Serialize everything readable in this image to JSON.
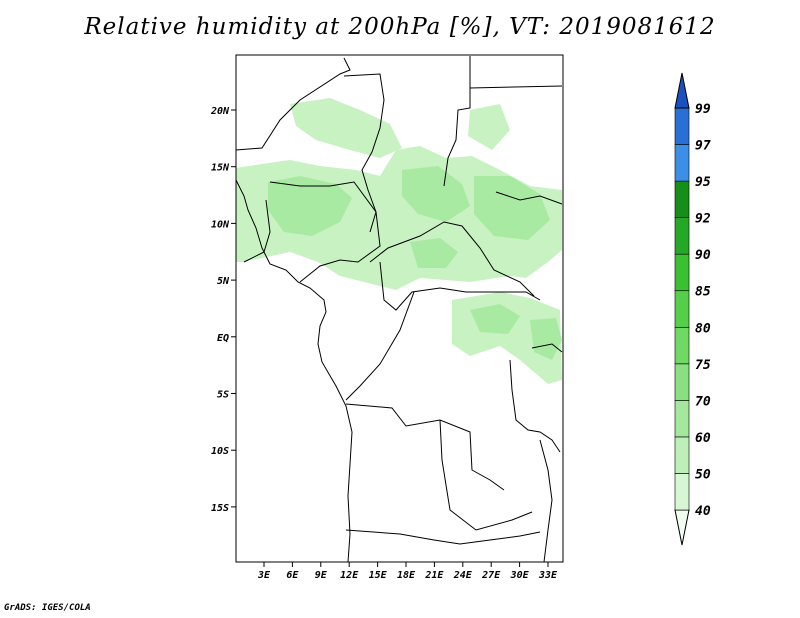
{
  "title": "Relative humidity at 200hPa [%], VT: 2019081612",
  "credit": "GrADS: IGES/COLA",
  "map": {
    "lon_range": [
      0,
      34
    ],
    "lat_range": [
      -20,
      25
    ],
    "lat_ticks": [
      "20N",
      "15N",
      "10N",
      "5N",
      "EQ",
      "5S",
      "10S",
      "15S"
    ],
    "lon_ticks": [
      "3E",
      "6E",
      "9E",
      "12E",
      "15E",
      "18E",
      "21E",
      "24E",
      "27E",
      "30E",
      "33E"
    ]
  },
  "colorbar": {
    "levels": [
      "40",
      "50",
      "60",
      "70",
      "75",
      "80",
      "85",
      "90",
      "92",
      "95",
      "97",
      "99"
    ],
    "colors": [
      "#f0fcf0",
      "#d7f6d4",
      "#bdefb8",
      "#a3e89c",
      "#8ae080",
      "#6fd964",
      "#55cf4a",
      "#3bbf33",
      "#25a826",
      "#168f18",
      "#3c8fe6",
      "#2a6fd6",
      "#1b50c0"
    ]
  },
  "humidity_field_colors": [
    "#c8f2c2",
    "#a9eaa2"
  ]
}
